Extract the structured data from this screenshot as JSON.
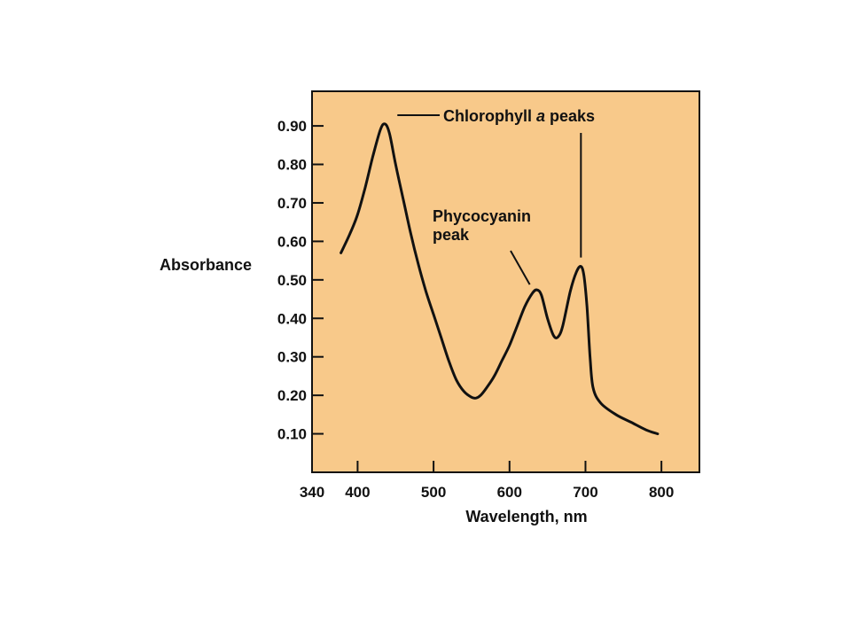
{
  "chart_data": {
    "type": "line",
    "title": "",
    "xlabel": "Wavelength, nm",
    "ylabel": "Absorbance",
    "xlim": [
      340,
      850
    ],
    "ylim": [
      0,
      0.99
    ],
    "x_ticks": [
      340,
      400,
      500,
      600,
      700,
      800
    ],
    "x_tick_labels": [
      "340",
      "400",
      "500",
      "600",
      "700",
      "800"
    ],
    "y_ticks": [
      0.1,
      0.2,
      0.3,
      0.4,
      0.5,
      0.6,
      0.7,
      0.8,
      0.9
    ],
    "y_tick_labels": [
      "0.10",
      "0.20",
      "0.30",
      "0.40",
      "0.50",
      "0.60",
      "0.70",
      "0.80",
      "0.90"
    ],
    "grid": false,
    "background_color": "#F8C98A",
    "line_color": "#111111",
    "series": [
      {
        "x": [
          378,
          390,
          400,
          410,
          420,
          430,
          436,
          442,
          450,
          460,
          470,
          480,
          490,
          500,
          510,
          520,
          530,
          540,
          550,
          556,
          562,
          570,
          580,
          590,
          600,
          610,
          620,
          630,
          636,
          642,
          650,
          658,
          664,
          670,
          680,
          688,
          694,
          698,
          702,
          706,
          710,
          720,
          740,
          760,
          780,
          795
        ],
        "y": [
          0.57,
          0.62,
          0.67,
          0.74,
          0.82,
          0.89,
          0.905,
          0.88,
          0.8,
          0.71,
          0.62,
          0.54,
          0.47,
          0.41,
          0.35,
          0.29,
          0.24,
          0.21,
          0.195,
          0.193,
          0.2,
          0.22,
          0.25,
          0.29,
          0.33,
          0.38,
          0.43,
          0.465,
          0.474,
          0.46,
          0.4,
          0.355,
          0.352,
          0.38,
          0.47,
          0.52,
          0.535,
          0.51,
          0.43,
          0.3,
          0.22,
          0.18,
          0.15,
          0.13,
          0.11,
          0.1
        ]
      }
    ],
    "annotations": [
      {
        "text_parts": [
          "Chlorophyll ",
          "a",
          " peaks"
        ],
        "italic_part": 1,
        "peaks": [
          {
            "x": 436,
            "y": 0.905
          },
          {
            "x": 694,
            "y": 0.535
          }
        ]
      },
      {
        "lines": [
          "Phycocyanin",
          "peak"
        ],
        "peak": {
          "x": 636,
          "y": 0.474
        }
      }
    ]
  }
}
